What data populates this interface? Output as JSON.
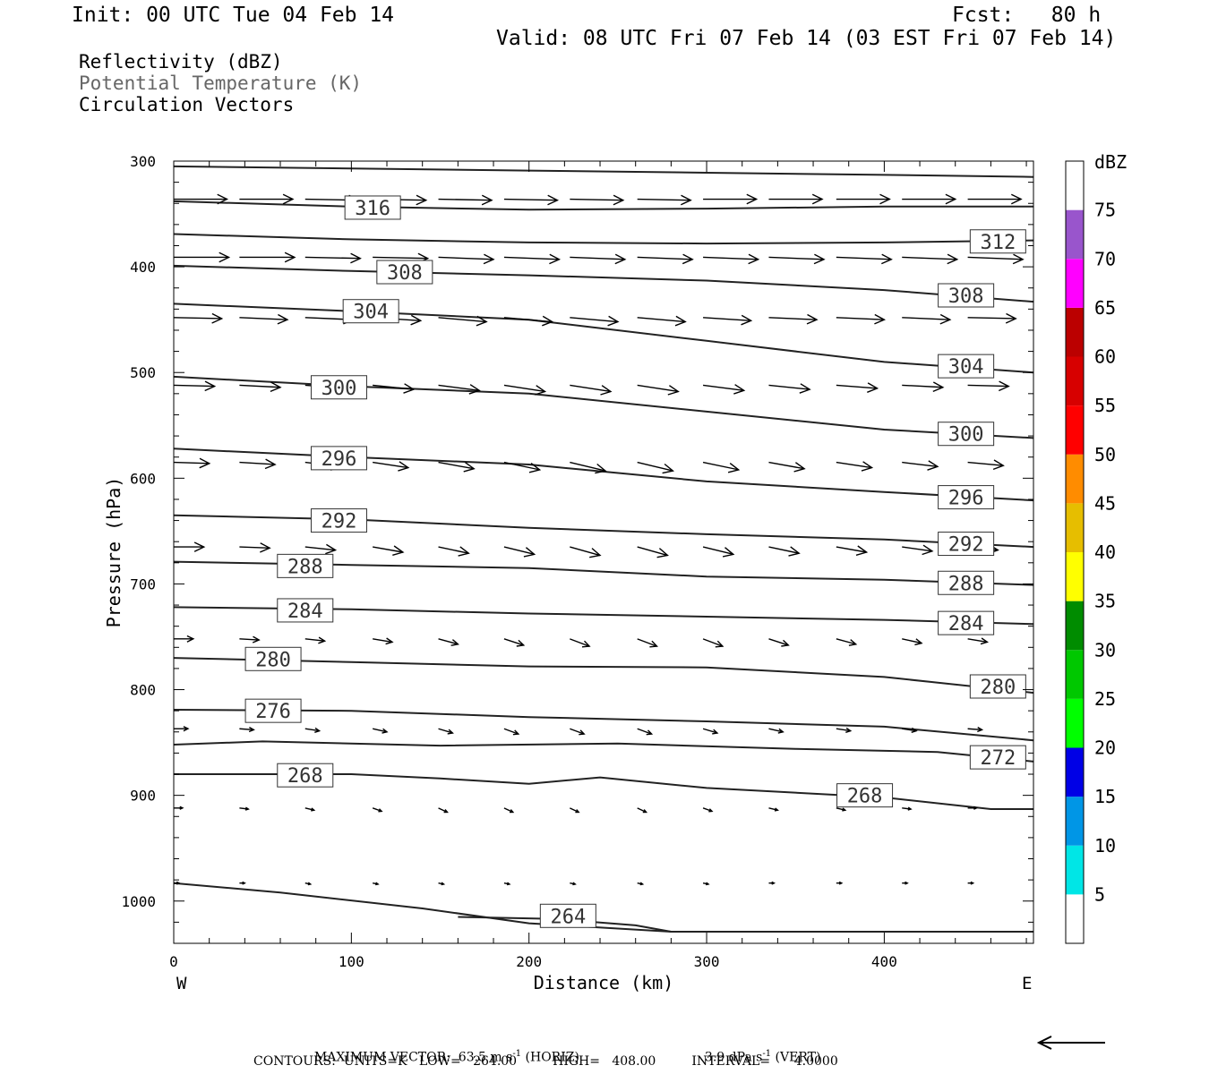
{
  "header": {
    "init": "Init: 00 UTC Tue 04 Feb 14",
    "fcst": "Fcst:   80 h",
    "valid": "Valid: 08 UTC Fri 07 Feb 14 (03 EST Fri 07 Feb 14)"
  },
  "titles": [
    {
      "text": "Reflectivity (dBZ)",
      "color": "#000000"
    },
    {
      "text": "Potential Temperature (K)",
      "color": "#666666"
    },
    {
      "text": "Circulation Vectors",
      "color": "#000000"
    }
  ],
  "footer": {
    "max_vector_prefix": "MAXIMUM VECTOR:  63.5 m s",
    "max_vector_horiz": " (HORIZ)",
    "max_vector_vert_prefix": "3.9 dPa s",
    "max_vector_vert": " (VERT)",
    "superscript": "-1",
    "contours": "CONTOURS:  UNITS=K   LOW=   264.00         HIGH=   408.00         INTERVAL=      4.0000"
  },
  "chart_data": {
    "type": "contour",
    "xlabel": "Distance (km)",
    "ylabel": "Pressure (hPa)",
    "xlim": [
      0,
      484
    ],
    "ylim": [
      300,
      1040
    ],
    "y_inverted": true,
    "x_ticks": [
      0,
      100,
      200,
      300,
      400
    ],
    "y_ticks": [
      300,
      400,
      500,
      600,
      700,
      800,
      900,
      1000
    ],
    "x_end_labels": {
      "left": "W",
      "right": "E"
    },
    "colorbar": {
      "label": "dBZ",
      "tick_labels": [
        "5",
        "10",
        "15",
        "20",
        "25",
        "30",
        "35",
        "40",
        "45",
        "50",
        "55",
        "60",
        "65",
        "70",
        "75"
      ],
      "colors": [
        "#ffffff",
        "#00e6e6",
        "#0096e6",
        "#0000e6",
        "#00ff00",
        "#00c800",
        "#008c00",
        "#ffff00",
        "#e6be00",
        "#ff8c00",
        "#ff0000",
        "#d70000",
        "#bb0000",
        "#ff00ff",
        "#9955cc",
        "#ffffff"
      ]
    },
    "theta_contours": [
      {
        "label": "",
        "points": [
          [
            0,
            305
          ],
          [
            100,
            307
          ],
          [
            200,
            309
          ],
          [
            300,
            311
          ],
          [
            400,
            313
          ],
          [
            484,
            315
          ]
        ]
      },
      {
        "label": "316",
        "points": [
          [
            0,
            338
          ],
          [
            100,
            343
          ],
          [
            200,
            346
          ],
          [
            300,
            345
          ],
          [
            400,
            343
          ],
          [
            484,
            343
          ]
        ]
      },
      {
        "label": "312",
        "points": [
          [
            0,
            369
          ],
          [
            100,
            374
          ],
          [
            200,
            377
          ],
          [
            300,
            378
          ],
          [
            400,
            377
          ],
          [
            484,
            375
          ]
        ]
      },
      {
        "label": "308",
        "points": [
          [
            0,
            399
          ],
          [
            100,
            404
          ],
          [
            200,
            408
          ],
          [
            300,
            413
          ],
          [
            400,
            422
          ],
          [
            484,
            433
          ]
        ]
      },
      {
        "label": "304",
        "points": [
          [
            0,
            435
          ],
          [
            100,
            442
          ],
          [
            200,
            450
          ],
          [
            300,
            470
          ],
          [
            400,
            490
          ],
          [
            484,
            500
          ]
        ]
      },
      {
        "label": "300",
        "points": [
          [
            0,
            504
          ],
          [
            100,
            513
          ],
          [
            200,
            520
          ],
          [
            300,
            537
          ],
          [
            400,
            554
          ],
          [
            484,
            562
          ]
        ]
      },
      {
        "label": "296",
        "points": [
          [
            0,
            572
          ],
          [
            100,
            580
          ],
          [
            200,
            587
          ],
          [
            300,
            603
          ],
          [
            400,
            613
          ],
          [
            484,
            621
          ]
        ]
      },
      {
        "label": "292",
        "points": [
          [
            0,
            635
          ],
          [
            100,
            639
          ],
          [
            200,
            647
          ],
          [
            300,
            653
          ],
          [
            400,
            658
          ],
          [
            484,
            665
          ]
        ]
      },
      {
        "label": "288",
        "points": [
          [
            0,
            679
          ],
          [
            100,
            682
          ],
          [
            200,
            685
          ],
          [
            300,
            693
          ],
          [
            400,
            696
          ],
          [
            484,
            701
          ]
        ]
      },
      {
        "label": "284",
        "points": [
          [
            0,
            722
          ],
          [
            100,
            724
          ],
          [
            200,
            728
          ],
          [
            300,
            731
          ],
          [
            400,
            734
          ],
          [
            484,
            738
          ]
        ]
      },
      {
        "label": "280",
        "points": [
          [
            0,
            770
          ],
          [
            100,
            774
          ],
          [
            200,
            778
          ],
          [
            300,
            779
          ],
          [
            400,
            788
          ],
          [
            484,
            803
          ]
        ]
      },
      {
        "label": "276",
        "points": [
          [
            0,
            819
          ],
          [
            100,
            820
          ],
          [
            200,
            826
          ],
          [
            300,
            830
          ],
          [
            400,
            835
          ],
          [
            484,
            848
          ]
        ]
      },
      {
        "label": "272",
        "points": [
          [
            0,
            852
          ],
          [
            50,
            849
          ],
          [
            150,
            853
          ],
          [
            250,
            851
          ],
          [
            350,
            856
          ],
          [
            430,
            859
          ],
          [
            484,
            868
          ]
        ]
      },
      {
        "label": "268",
        "points": [
          [
            0,
            880
          ],
          [
            100,
            880
          ],
          [
            150,
            884
          ],
          [
            200,
            889
          ],
          [
            240,
            883
          ],
          [
            300,
            893
          ],
          [
            400,
            902
          ],
          [
            460,
            913
          ],
          [
            484,
            913
          ]
        ]
      },
      {
        "label": "264",
        "points": [
          [
            0,
            983
          ],
          [
            60,
            992
          ],
          [
            140,
            1007
          ],
          [
            200,
            1021
          ],
          [
            280,
            1029
          ],
          [
            484,
            1029
          ]
        ]
      },
      {
        "label": "",
        "points": [
          [
            160,
            1015
          ],
          [
            215,
            1017
          ],
          [
            260,
            1023
          ],
          [
            280,
            1029
          ]
        ]
      }
    ],
    "contour_labels": [
      {
        "text": "316",
        "x": 112,
        "p": 344
      },
      {
        "text": "312",
        "x": 464,
        "p": 376
      },
      {
        "text": "308",
        "x": 130,
        "p": 405
      },
      {
        "text": "308",
        "x": 446,
        "p": 427
      },
      {
        "text": "304",
        "x": 111,
        "p": 442
      },
      {
        "text": "304",
        "x": 446,
        "p": 494
      },
      {
        "text": "300",
        "x": 93,
        "p": 514
      },
      {
        "text": "300",
        "x": 446,
        "p": 558
      },
      {
        "text": "296",
        "x": 93,
        "p": 581
      },
      {
        "text": "296",
        "x": 446,
        "p": 618
      },
      {
        "text": "292",
        "x": 93,
        "p": 640
      },
      {
        "text": "292",
        "x": 446,
        "p": 662
      },
      {
        "text": "288",
        "x": 74,
        "p": 683
      },
      {
        "text": "288",
        "x": 446,
        "p": 699
      },
      {
        "text": "284",
        "x": 74,
        "p": 725
      },
      {
        "text": "284",
        "x": 446,
        "p": 737
      },
      {
        "text": "280",
        "x": 56,
        "p": 771
      },
      {
        "text": "280",
        "x": 464,
        "p": 797
      },
      {
        "text": "276",
        "x": 56,
        "p": 820
      },
      {
        "text": "272",
        "x": 464,
        "p": 864
      },
      {
        "text": "268",
        "x": 74,
        "p": 881
      },
      {
        "text": "268",
        "x": 389,
        "p": 900
      },
      {
        "text": "264",
        "x": 222,
        "p": 1014
      }
    ],
    "vector_rows": [
      {
        "p": 336,
        "x": [
          0,
          37,
          74,
          112,
          149,
          186,
          223,
          261,
          298,
          335,
          373,
          410,
          447
        ],
        "u": 30,
        "dp": [
          0,
          0,
          1,
          1,
          1,
          1,
          1,
          1,
          0,
          0,
          0,
          0,
          0
        ]
      },
      {
        "p": 391,
        "x": [
          0,
          37,
          74,
          112,
          149,
          186,
          223,
          261,
          298,
          335,
          373,
          410,
          447
        ],
        "u": 31,
        "dp": [
          0,
          0,
          1,
          1,
          2,
          2,
          2,
          2,
          2,
          2,
          2,
          2,
          2
        ]
      },
      {
        "p": 448,
        "x": [
          0,
          37,
          74,
          112,
          149,
          186,
          223,
          261,
          298,
          335,
          373,
          410,
          447
        ],
        "u": 27,
        "dp": [
          1,
          2,
          2,
          3,
          4,
          4,
          4,
          4,
          3,
          2,
          2,
          2,
          1
        ]
      },
      {
        "p": 512,
        "x": [
          0,
          37,
          74,
          112,
          149,
          186,
          223,
          261,
          298,
          335,
          373,
          410,
          447
        ],
        "u": 23,
        "dp": [
          1,
          2,
          3,
          4,
          5,
          6,
          6,
          6,
          5,
          4,
          3,
          2,
          1
        ]
      },
      {
        "p": 585,
        "x": [
          0,
          37,
          74,
          112,
          149,
          186,
          223,
          261,
          298,
          335,
          373,
          410,
          447
        ],
        "u": 20,
        "dp": [
          1,
          2,
          4,
          5,
          6,
          7,
          8,
          8,
          7,
          6,
          5,
          4,
          3
        ]
      },
      {
        "p": 665,
        "x": [
          0,
          37,
          74,
          112,
          149,
          186,
          223,
          261,
          298,
          335,
          373,
          410,
          447
        ],
        "u": 17,
        "dp": [
          0,
          1,
          3,
          5,
          6,
          7,
          8,
          8,
          7,
          6,
          5,
          4,
          3
        ]
      },
      {
        "p": 752,
        "x": [
          0,
          37,
          74,
          112,
          149,
          186,
          223,
          261,
          298,
          335,
          373,
          410,
          447
        ],
        "u": 11,
        "dp": [
          0,
          1,
          2,
          3,
          5,
          6,
          7,
          7,
          7,
          6,
          5,
          4,
          3
        ]
      },
      {
        "p": 837,
        "x": [
          0,
          37,
          74,
          112,
          149,
          186,
          223,
          261,
          298,
          335,
          373,
          410,
          447
        ],
        "u": 8,
        "dp": [
          0,
          1,
          2,
          3,
          4,
          5,
          5,
          5,
          4,
          3,
          2,
          2,
          1
        ]
      },
      {
        "p": 912,
        "x": [
          0,
          37,
          74,
          112,
          149,
          186,
          223,
          261,
          298,
          335,
          373,
          410,
          447
        ],
        "u": 5,
        "dp": [
          0,
          1,
          2,
          3,
          4,
          4,
          4,
          4,
          3,
          2,
          2,
          1,
          0
        ]
      },
      {
        "p": 983,
        "x": [
          0,
          37,
          74,
          112,
          149,
          186,
          223,
          261,
          298,
          335,
          373,
          410,
          447
        ],
        "u": 3,
        "dp": [
          0,
          0,
          1,
          1,
          1,
          1,
          1,
          1,
          1,
          0,
          0,
          0,
          0
        ]
      }
    ],
    "reference_vector": {
      "direction": "left"
    }
  }
}
